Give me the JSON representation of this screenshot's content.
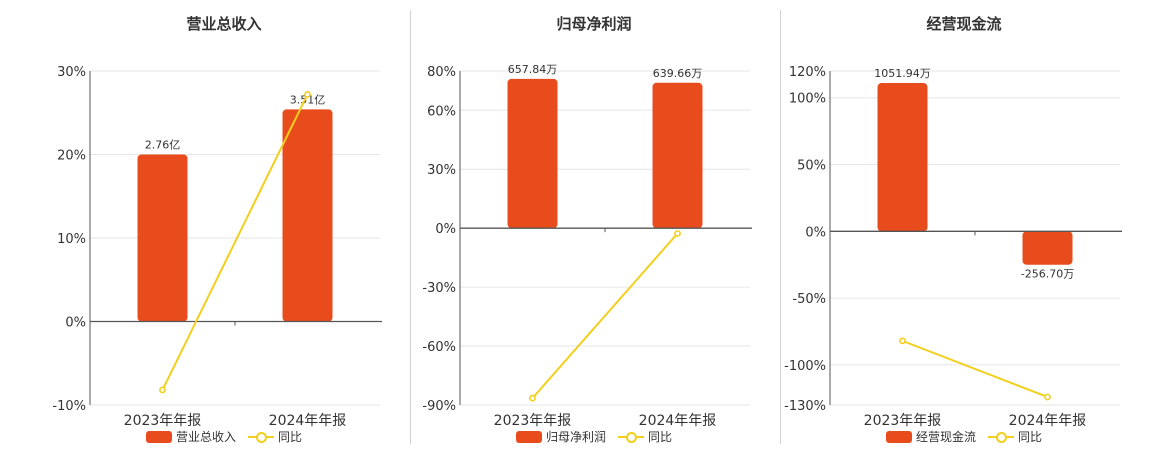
{
  "colors": {
    "bar": "#e84c1c",
    "line": "#f2cf1d",
    "axis": "#555555",
    "grid": "#e6e6e6"
  },
  "legend_line_label": "同比",
  "chart_data": [
    {
      "type": "bar",
      "title": "营业总收入",
      "categories": [
        "2023年年报",
        "2024年年报"
      ],
      "series": [
        {
          "name": "营业总收入",
          "type": "bar",
          "values": [
            20,
            25.4
          ],
          "labels": [
            "2.76亿",
            "3.51亿"
          ]
        },
        {
          "name": "同比",
          "type": "line",
          "values": [
            -8.2,
            27.2
          ]
        }
      ],
      "yticks": [
        "30%",
        "20%",
        "10%",
        "0%",
        "-10%"
      ],
      "yticks_values": [
        30,
        20,
        10,
        0,
        -10
      ],
      "ylim": [
        -10,
        30
      ],
      "grid": true,
      "legend_position": "bottom"
    },
    {
      "type": "bar",
      "title": "归母净利润",
      "categories": [
        "2023年年报",
        "2024年年报"
      ],
      "series": [
        {
          "name": "归母净利润",
          "type": "bar",
          "values": [
            76,
            74
          ],
          "labels": [
            "657.84万",
            "639.66万"
          ]
        },
        {
          "name": "同比",
          "type": "line",
          "values": [
            -86.5,
            -2.7
          ]
        }
      ],
      "yticks": [
        "80%",
        "60%",
        "30%",
        "0%",
        "-30%",
        "-60%",
        "-90%"
      ],
      "yticks_values": [
        80,
        60,
        30,
        0,
        -30,
        -60,
        -90
      ],
      "ylim": [
        -90,
        80
      ],
      "grid": true,
      "legend_position": "bottom"
    },
    {
      "type": "bar",
      "title": "经营现金流",
      "categories": [
        "2023年年报",
        "2024年年报"
      ],
      "series": [
        {
          "name": "经营现金流",
          "type": "bar",
          "values": [
            111,
            -25
          ],
          "labels": [
            "1051.94万",
            "-256.70万"
          ]
        },
        {
          "name": "同比",
          "type": "line",
          "values": [
            -82,
            -124
          ]
        }
      ],
      "yticks": [
        "120%",
        "100%",
        "50%",
        "0%",
        "-50%",
        "-100%",
        "-130%"
      ],
      "yticks_values": [
        120,
        100,
        50,
        0,
        -50,
        -100,
        -130
      ],
      "ylim": [
        -130,
        120
      ],
      "grid": true,
      "legend_position": "bottom"
    }
  ]
}
